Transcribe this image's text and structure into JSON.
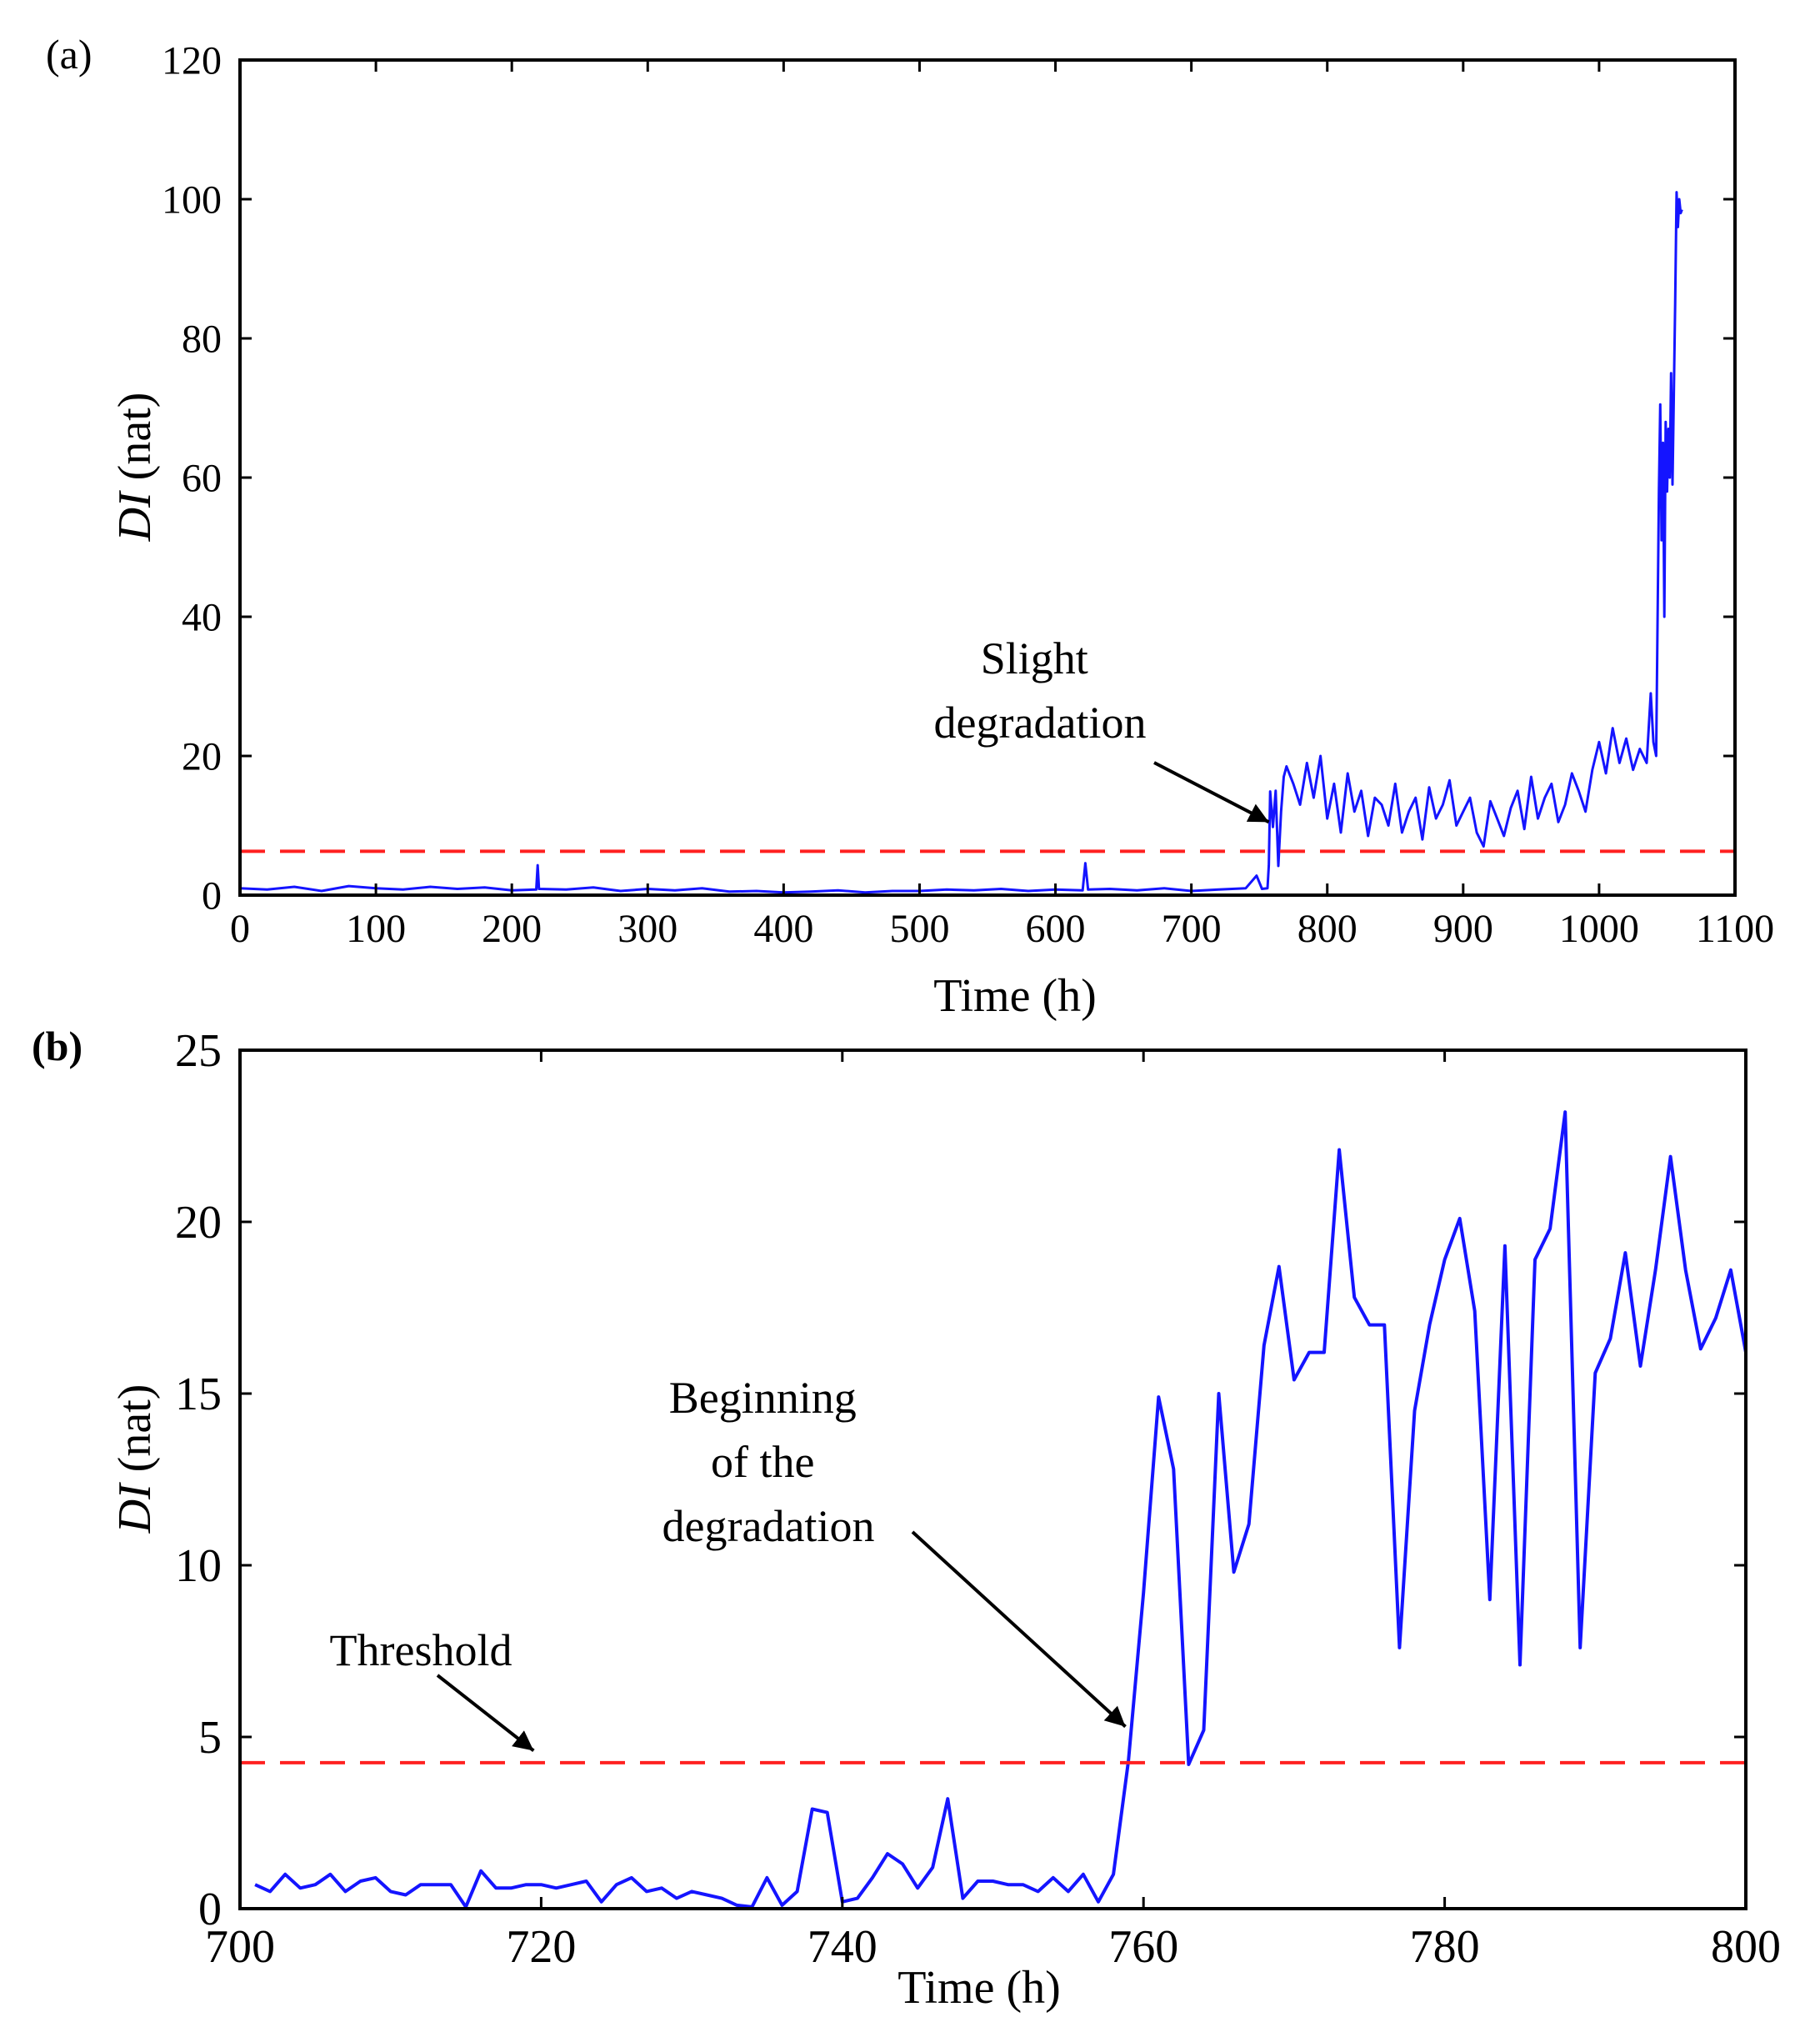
{
  "chart_data": [
    {
      "type": "line",
      "panel_label": "(a)",
      "xlabel": "Time (h)",
      "ylabel_italic": "DI",
      "ylabel_unit": " (nat)",
      "xlim": [
        0,
        1100
      ],
      "ylim": [
        0,
        120
      ],
      "xticks": [
        0,
        100,
        200,
        300,
        400,
        500,
        600,
        700,
        800,
        900,
        1000,
        1100
      ],
      "yticks": [
        0,
        20,
        40,
        60,
        80,
        100,
        120
      ],
      "threshold": 6.3,
      "series_color": "#1414ff",
      "threshold_color": "#ff2020",
      "annotations": [
        {
          "lines": [
            "Slight",
            "degradation"
          ],
          "point_to": [
            757,
            10.5
          ]
        }
      ],
      "series": [
        {
          "name": "DI",
          "x": [
            0,
            20,
            40,
            60,
            80,
            100,
            120,
            140,
            160,
            180,
            200,
            218,
            219,
            220,
            240,
            260,
            280,
            300,
            320,
            340,
            360,
            380,
            400,
            420,
            440,
            460,
            480,
            500,
            520,
            540,
            560,
            580,
            600,
            620,
            622,
            624,
            640,
            660,
            680,
            700,
            720,
            740,
            748,
            752,
            756,
            757,
            758,
            760,
            762,
            764,
            766,
            768,
            770,
            775,
            780,
            785,
            790,
            795,
            800,
            805,
            810,
            815,
            820,
            825,
            830,
            835,
            840,
            845,
            850,
            855,
            860,
            865,
            870,
            875,
            880,
            885,
            890,
            895,
            900,
            905,
            910,
            915,
            920,
            925,
            930,
            935,
            940,
            945,
            950,
            955,
            960,
            965,
            970,
            975,
            980,
            985,
            990,
            995,
            1000,
            1005,
            1010,
            1015,
            1020,
            1025,
            1030,
            1035,
            1038,
            1040,
            1042,
            1044,
            1045,
            1046,
            1047,
            1048,
            1049,
            1050,
            1051,
            1052,
            1053,
            1054,
            1055,
            1056,
            1057,
            1058,
            1059,
            1060,
            1061
          ],
          "y": [
            1.0,
            0.8,
            1.2,
            0.6,
            1.3,
            1.0,
            0.8,
            1.2,
            0.9,
            1.1,
            0.7,
            0.8,
            4.3,
            0.9,
            0.8,
            1.1,
            0.6,
            0.9,
            0.7,
            1.0,
            0.5,
            0.6,
            0.4,
            0.5,
            0.7,
            0.4,
            0.6,
            0.6,
            0.8,
            0.7,
            0.9,
            0.6,
            0.8,
            0.7,
            4.6,
            0.8,
            0.9,
            0.7,
            1.0,
            0.6,
            0.8,
            1.0,
            2.8,
            0.9,
            1.0,
            4.3,
            14.9,
            9.8,
            15.0,
            4.2,
            12.0,
            17.0,
            18.5,
            16.0,
            13.0,
            19.0,
            14.0,
            20.0,
            11.0,
            16.0,
            9.0,
            17.5,
            12.0,
            15.0,
            8.5,
            14.0,
            13.0,
            10.0,
            16.0,
            9.0,
            12.0,
            14.0,
            8.0,
            15.5,
            11.0,
            13.0,
            16.5,
            10.0,
            12.0,
            14.0,
            9.0,
            7.0,
            13.5,
            11.0,
            8.5,
            12.5,
            15.0,
            9.5,
            17.0,
            11.0,
            14.0,
            16.0,
            10.5,
            13.0,
            17.5,
            15.0,
            12.0,
            18.0,
            22.0,
            17.5,
            24.0,
            19.0,
            22.5,
            18.0,
            21.0,
            19.0,
            29.0,
            22.0,
            20.0,
            58.0,
            70.5,
            51.0,
            65.0,
            40.0,
            68.0,
            58.0,
            67.0,
            60.0,
            75.0,
            59.0,
            72.0,
            85.0,
            101.0,
            96.0,
            100.0,
            98.0,
            98.5
          ]
        }
      ]
    },
    {
      "type": "line",
      "panel_label": "(b)",
      "xlabel": "Time (h)",
      "ylabel_italic": "DI",
      "ylabel_unit": " (nat)",
      "xlim": [
        700,
        800
      ],
      "ylim": [
        0,
        25
      ],
      "xticks": [
        700,
        720,
        740,
        760,
        780,
        800
      ],
      "yticks": [
        0,
        5,
        10,
        15,
        20,
        25
      ],
      "threshold": 4.25,
      "series_color": "#1414ff",
      "threshold_color": "#ff2020",
      "annotations": [
        {
          "lines": [
            "Beginning",
            "of the",
            "degradation"
          ],
          "point_to": [
            758.8,
            5.3
          ]
        },
        {
          "lines": [
            "Threshold"
          ],
          "point_to": [
            719.5,
            4.6
          ]
        }
      ],
      "series": [
        {
          "name": "DI",
          "x": [
            701,
            702,
            703,
            704,
            705,
            706,
            707,
            708,
            709,
            710,
            711,
            712,
            713,
            714,
            715,
            716,
            717,
            718,
            719,
            720,
            721,
            722,
            723,
            724,
            725,
            726,
            727,
            728,
            729,
            730,
            731,
            732,
            733,
            734,
            735,
            736,
            737,
            738,
            739,
            740,
            741,
            742,
            743,
            744,
            745,
            746,
            747,
            748,
            749,
            750,
            751,
            752,
            753,
            754,
            755,
            756,
            757,
            758,
            759,
            760,
            761,
            762,
            763,
            764,
            765,
            766,
            767,
            768,
            769,
            770,
            771,
            772,
            773,
            774,
            775,
            776,
            777,
            778,
            779,
            780,
            781,
            782,
            783,
            784,
            785,
            786,
            787,
            788,
            789,
            790,
            791,
            792,
            793,
            794,
            795,
            796,
            797,
            798,
            799,
            800
          ],
          "y": [
            0.7,
            0.5,
            1.0,
            0.6,
            0.7,
            1.0,
            0.5,
            0.8,
            0.9,
            0.5,
            0.4,
            0.7,
            0.7,
            0.7,
            0.05,
            1.1,
            0.6,
            0.6,
            0.7,
            0.7,
            0.6,
            0.7,
            0.8,
            0.2,
            0.7,
            0.9,
            0.5,
            0.6,
            0.3,
            0.5,
            0.4,
            0.3,
            0.1,
            0.05,
            0.9,
            0.1,
            0.5,
            2.9,
            2.8,
            0.2,
            0.3,
            0.9,
            1.6,
            1.3,
            0.6,
            1.2,
            3.2,
            0.3,
            0.8,
            0.8,
            0.7,
            0.7,
            0.5,
            0.9,
            0.5,
            1.0,
            0.2,
            1.0,
            4.3,
            9.2,
            14.9,
            12.8,
            4.2,
            5.2,
            15.0,
            9.8,
            11.2,
            16.4,
            18.7,
            15.4,
            16.2,
            16.2,
            22.1,
            17.8,
            17.0,
            17.0,
            7.6,
            14.5,
            17.0,
            18.9,
            20.1,
            17.4,
            9.0,
            19.3,
            7.1,
            18.9,
            19.8,
            23.2,
            7.6,
            15.6,
            16.6,
            19.1,
            15.8,
            18.6,
            21.9,
            18.6,
            16.3,
            17.2,
            18.6,
            16.2
          ]
        }
      ]
    }
  ]
}
